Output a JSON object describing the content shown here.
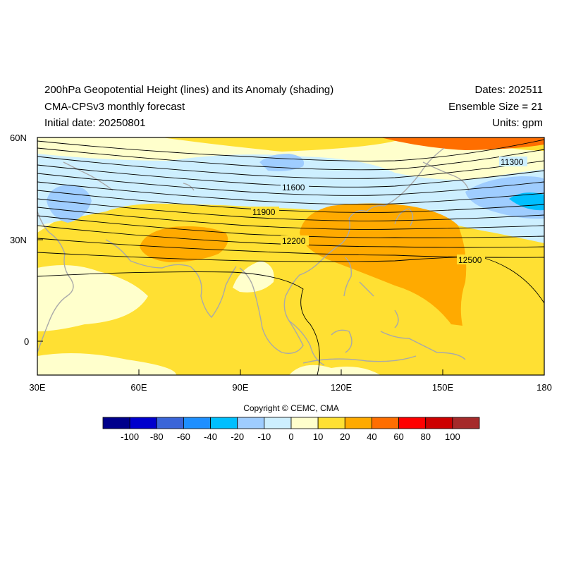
{
  "header": {
    "title_line1": "200hPa Geopotential Height (lines) and its Anomaly (shading)",
    "title_line2": "CMA-CPSv3 monthly forecast",
    "title_line3": "Initial date: 20250801",
    "dates": "Dates: 202511",
    "ensemble": "Ensemble Size = 21",
    "units": "Units: gpm"
  },
  "axes": {
    "lat_labels": [
      "60N",
      "30N",
      "0"
    ],
    "lon_labels": [
      "30E",
      "60E",
      "90E",
      "120E",
      "150E",
      "180"
    ]
  },
  "contour_labels": [
    "11300",
    "11600",
    "11900",
    "12200",
    "12500"
  ],
  "colorbar": {
    "colors": [
      "#00008b",
      "#0000cd",
      "#3a65d8",
      "#1e8fff",
      "#00bfff",
      "#9fcdff",
      "#cdefff",
      "#ffffcc",
      "#ffe033",
      "#ffaa00",
      "#ff6e00",
      "#ff0000",
      "#cd0000",
      "#a52a2a"
    ],
    "labels": [
      "-100",
      "-80",
      "-60",
      "-40",
      "-20",
      "-10",
      "0",
      "10",
      "20",
      "40",
      "60",
      "80",
      "100"
    ]
  },
  "copyright": "Copyright © CEMC, CMA"
}
